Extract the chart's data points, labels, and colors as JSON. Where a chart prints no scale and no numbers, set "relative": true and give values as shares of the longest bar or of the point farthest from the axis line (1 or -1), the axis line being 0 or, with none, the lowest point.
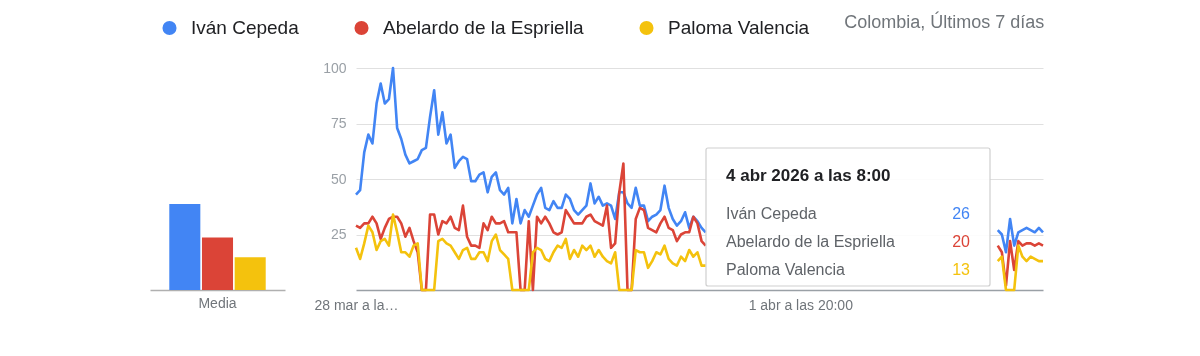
{
  "chart_data": [
    {
      "type": "bar",
      "categories": [
        "Media"
      ],
      "relative": true,
      "series": [
        {
          "color": "#4285f4",
          "values": [
            1
          ]
        },
        {
          "color": "#db4437",
          "values": [
            0.61
          ]
        },
        {
          "color": "#f4c20d",
          "values": [
            0.38
          ]
        }
      ]
    },
    {
      "type": "line",
      "subtitle": "Colombia, Últimos 7 días",
      "ylim": [
        0,
        100
      ],
      "yticks": [
        25,
        50,
        75,
        100
      ],
      "grid": "y",
      "legend": "top left",
      "annotations": [
        "4 abr 2026 a las 8:00",
        "26",
        "20",
        "13"
      ],
      "categories": [
        "28 mar a la…",
        null,
        null,
        null,
        null,
        null,
        null,
        null,
        null,
        null,
        null,
        null,
        null,
        null,
        null,
        null,
        null,
        null,
        null,
        null,
        null,
        null,
        null,
        null,
        null,
        null,
        null,
        null,
        null,
        null,
        null,
        null,
        null,
        null,
        null,
        null,
        null,
        null,
        null,
        null,
        null,
        null,
        null,
        null,
        null,
        null,
        null,
        null,
        null,
        null,
        null,
        null,
        null,
        null,
        null,
        null,
        null,
        null,
        null,
        null,
        null,
        null,
        null,
        null,
        null,
        null,
        null,
        null,
        null,
        null,
        null,
        null,
        null,
        null,
        null,
        null,
        null,
        null,
        null,
        null,
        null,
        null,
        null,
        null,
        null,
        null,
        null,
        null,
        null,
        null,
        null,
        null,
        null,
        null,
        null,
        null,
        null,
        null,
        null,
        null,
        null,
        null,
        null,
        null,
        null,
        null,
        null,
        null,
        "1 abr a las 20:00",
        null,
        null,
        null,
        null,
        null,
        null,
        null,
        null,
        null,
        null,
        null,
        null,
        null,
        null,
        null,
        null,
        null,
        null,
        null,
        null,
        null,
        null,
        null,
        null,
        null,
        null,
        null,
        null,
        null,
        null,
        null,
        null,
        null,
        null,
        null,
        null,
        null,
        null,
        null,
        null,
        null,
        null,
        null,
        null,
        null,
        null,
        null,
        null,
        null,
        null,
        null,
        null,
        null,
        null,
        null,
        null,
        null,
        null,
        null
      ],
      "series": [
        {
          "name": "Iván Cepeda",
          "color": "#4285f4",
          "values": [
            43,
            45,
            62,
            70,
            66,
            84,
            93,
            84,
            86,
            100,
            73,
            68,
            61,
            57,
            58,
            59,
            63,
            64,
            78,
            90,
            70,
            80,
            66,
            70,
            55,
            58,
            60,
            59,
            49,
            49,
            52,
            53,
            44,
            51,
            53,
            45,
            43,
            46,
            30,
            41,
            30,
            36,
            33,
            38,
            43,
            46,
            37,
            36,
            40,
            37,
            37,
            43,
            41,
            36,
            34,
            36,
            38,
            48,
            39,
            42,
            38,
            39,
            38,
            32,
            44,
            44,
            39,
            37,
            46,
            38,
            38,
            31,
            33,
            34,
            36,
            47,
            37,
            32,
            29,
            31,
            35,
            28,
            33,
            31,
            28,
            26,
            null,
            null,
            null,
            null,
            null,
            null,
            null,
            null,
            null,
            null,
            null,
            null,
            null,
            null,
            null,
            null,
            null,
            null,
            null,
            null,
            null,
            null,
            null,
            null,
            null,
            null,
            null,
            null,
            null,
            null,
            null,
            null,
            null,
            null,
            null,
            null,
            null,
            null,
            null,
            null,
            null,
            null,
            null,
            null,
            null,
            null,
            null,
            null,
            null,
            null,
            null,
            null,
            null,
            null,
            null,
            null,
            null,
            null,
            null,
            null,
            null,
            null,
            null,
            null,
            null,
            null,
            null,
            null,
            null,
            null,
            27,
            25,
            17,
            32,
            20,
            26,
            27,
            28,
            27,
            26,
            28,
            26
          ]
        },
        {
          "name": "Abelardo de la Espriella",
          "color": "#db4437",
          "values": [
            29,
            28,
            30,
            30,
            33,
            30,
            23,
            28,
            32,
            33,
            33,
            30,
            24,
            28,
            22,
            17,
            0,
            0,
            34,
            34,
            25,
            31,
            30,
            33,
            28,
            27,
            38,
            24,
            20,
            20,
            19,
            30,
            27,
            33,
            30,
            30,
            31,
            26,
            26,
            26,
            0,
            0,
            31,
            0,
            33,
            30,
            33,
            30,
            26,
            25,
            26,
            36,
            33,
            30,
            30,
            30,
            33,
            34,
            31,
            30,
            29,
            38,
            19,
            21,
            44,
            57,
            0,
            0,
            32,
            37,
            36,
            28,
            27,
            26,
            30,
            33,
            28,
            27,
            22,
            25,
            26,
            26,
            33,
            30,
            22,
            20,
            null,
            null,
            null,
            null,
            null,
            null,
            null,
            null,
            null,
            null,
            null,
            null,
            null,
            null,
            null,
            null,
            null,
            null,
            null,
            null,
            null,
            null,
            null,
            null,
            null,
            null,
            null,
            null,
            null,
            null,
            null,
            null,
            null,
            null,
            null,
            null,
            null,
            null,
            null,
            null,
            null,
            null,
            null,
            null,
            null,
            null,
            null,
            null,
            null,
            null,
            null,
            null,
            null,
            null,
            null,
            null,
            null,
            null,
            null,
            null,
            null,
            null,
            null,
            null,
            null,
            null,
            null,
            null,
            null,
            null,
            20,
            17,
            2,
            22,
            9,
            22,
            20,
            21,
            21,
            20,
            21,
            20
          ]
        },
        {
          "name": "Paloma Valencia",
          "color": "#f4c20d",
          "values": [
            19,
            14,
            21,
            29,
            26,
            18,
            22,
            23,
            20,
            34,
            26,
            17,
            17,
            15,
            20,
            21,
            0,
            0,
            0,
            0,
            22,
            23,
            21,
            20,
            17,
            14,
            18,
            19,
            14,
            14,
            17,
            17,
            13,
            22,
            25,
            18,
            16,
            14,
            0,
            0,
            0,
            0,
            0,
            17,
            19,
            18,
            14,
            13,
            17,
            20,
            19,
            23,
            14,
            18,
            15,
            20,
            18,
            20,
            15,
            18,
            15,
            13,
            12,
            17,
            0,
            0,
            0,
            0,
            18,
            17,
            17,
            10,
            13,
            17,
            16,
            20,
            14,
            12,
            11,
            15,
            13,
            18,
            15,
            17,
            11,
            11,
            null,
            null,
            null,
            null,
            null,
            null,
            null,
            null,
            null,
            null,
            null,
            null,
            null,
            null,
            null,
            null,
            null,
            null,
            null,
            null,
            null,
            null,
            null,
            null,
            null,
            null,
            null,
            null,
            null,
            null,
            null,
            null,
            null,
            null,
            null,
            null,
            null,
            null,
            null,
            null,
            null,
            null,
            null,
            null,
            null,
            null,
            null,
            null,
            null,
            null,
            null,
            null,
            null,
            null,
            null,
            null,
            null,
            null,
            null,
            null,
            null,
            null,
            null,
            null,
            null,
            null,
            null,
            null,
            null,
            null,
            13,
            15,
            0,
            0,
            0,
            20,
            15,
            13,
            15,
            14,
            13,
            13
          ]
        }
      ]
    }
  ]
}
